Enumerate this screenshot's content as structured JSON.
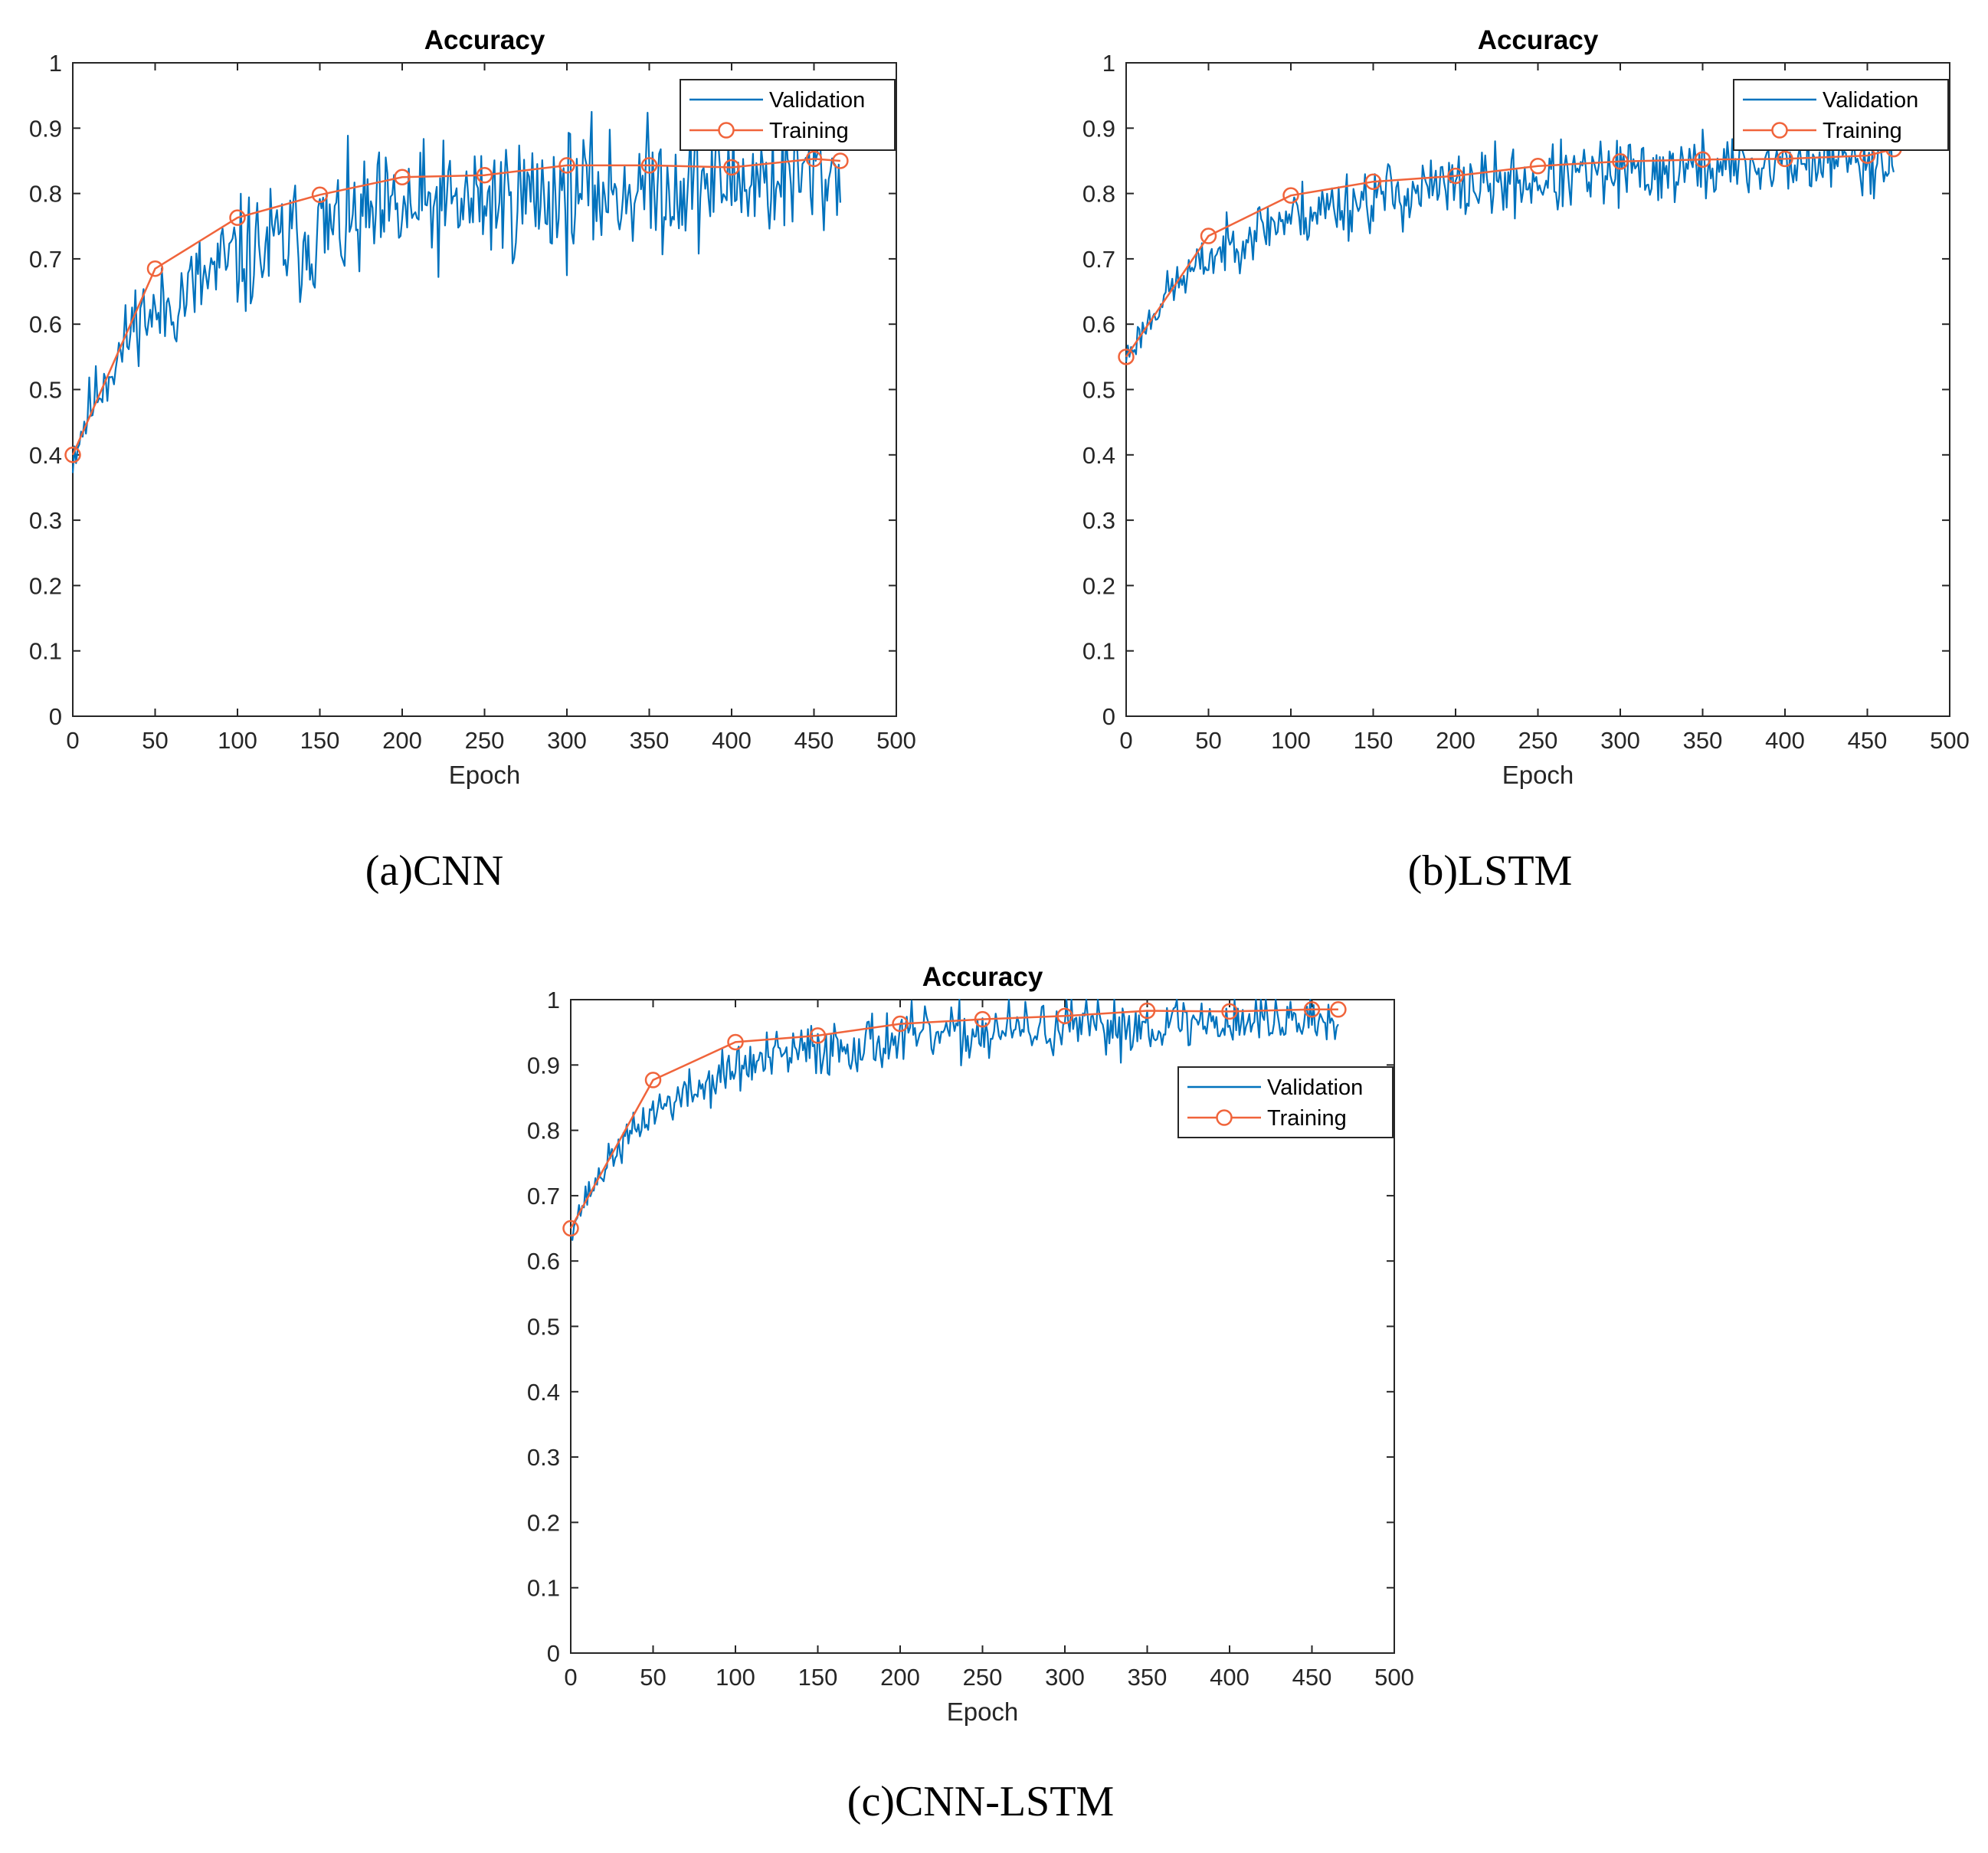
{
  "colors": {
    "validation": "#0072BD",
    "training": "#F0643B",
    "axis": "#262626"
  },
  "panels": [
    {
      "caption": "(a)CNN",
      "chart_data": {
        "type": "line",
        "title": "Accuracy",
        "xlabel": "Epoch",
        "ylabel": "",
        "xlim": [
          0,
          500
        ],
        "ylim": [
          0,
          1
        ],
        "xticks": [
          "0",
          "50",
          "100",
          "150",
          "200",
          "250",
          "300",
          "350",
          "400",
          "450",
          "500"
        ],
        "yticks": [
          "0",
          "0.1",
          "0.2",
          "0.3",
          "0.4",
          "0.5",
          "0.6",
          "0.7",
          "0.8",
          "0.9",
          "1"
        ],
        "legend": {
          "position": "top-right",
          "entries": [
            "Validation",
            "Training"
          ]
        },
        "series": [
          {
            "name": "Validation",
            "style": "line",
            "noisy": true,
            "seed": 11,
            "amp": 0.022,
            "x_end": 466,
            "x": [
              0,
              10,
              20,
              30,
              40,
              50,
              75,
              100,
              125,
              150,
              200,
              250,
              300,
              350,
              400,
              466
            ],
            "y": [
              0.4,
              0.47,
              0.52,
              0.56,
              0.62,
              0.61,
              0.66,
              0.7,
              0.72,
              0.74,
              0.77,
              0.79,
              0.8,
              0.81,
              0.82,
              0.83
            ]
          },
          {
            "name": "Training",
            "style": "line-marker",
            "x": [
              0,
              50,
              100,
              150,
              200,
              250,
              300,
              350,
              400,
              450,
              466
            ],
            "y": [
              0.4,
              0.685,
              0.763,
              0.798,
              0.825,
              0.828,
              0.843,
              0.843,
              0.84,
              0.853,
              0.85
            ]
          }
        ]
      }
    },
    {
      "caption": "(b)LSTM",
      "chart_data": {
        "type": "line",
        "title": "Accuracy",
        "xlabel": "Epoch",
        "ylabel": "",
        "xlim": [
          0,
          500
        ],
        "ylim": [
          0,
          1
        ],
        "xticks": [
          "0",
          "50",
          "100",
          "150",
          "200",
          "250",
          "300",
          "350",
          "400",
          "450",
          "500"
        ],
        "yticks": [
          "0",
          "0.1",
          "0.2",
          "0.3",
          "0.4",
          "0.5",
          "0.6",
          "0.7",
          "0.8",
          "0.9",
          "1"
        ],
        "legend": {
          "position": "top-right",
          "entries": [
            "Validation",
            "Training"
          ]
        },
        "series": [
          {
            "name": "Validation",
            "style": "line",
            "noisy": true,
            "seed": 23,
            "amp": 0.012,
            "x_end": 466,
            "x": [
              0,
              10,
              25,
              50,
              75,
              100,
              150,
              200,
              250,
              300,
              350,
              400,
              466
            ],
            "y": [
              0.55,
              0.59,
              0.65,
              0.7,
              0.74,
              0.765,
              0.795,
              0.81,
              0.82,
              0.83,
              0.84,
              0.845,
              0.855
            ]
          },
          {
            "name": "Training",
            "style": "line-marker",
            "x": [
              0,
              50,
              100,
              150,
              200,
              250,
              300,
              350,
              400,
              450,
              466
            ],
            "y": [
              0.55,
              0.735,
              0.797,
              0.818,
              0.827,
              0.842,
              0.849,
              0.852,
              0.853,
              0.858,
              0.868
            ]
          }
        ]
      }
    },
    {
      "caption": "(c)CNN-LSTM",
      "chart_data": {
        "type": "line",
        "title": "Accuracy",
        "xlabel": "Epoch",
        "ylabel": "",
        "xlim": [
          0,
          500
        ],
        "ylim": [
          0,
          1
        ],
        "xticks": [
          "0",
          "50",
          "100",
          "150",
          "200",
          "250",
          "300",
          "350",
          "400",
          "450",
          "500"
        ],
        "yticks": [
          "0",
          "0.1",
          "0.2",
          "0.3",
          "0.4",
          "0.5",
          "0.6",
          "0.7",
          "0.8",
          "0.9",
          "1"
        ],
        "legend": {
          "position": "top-right",
          "entries": [
            "Validation",
            "Training"
          ]
        },
        "series": [
          {
            "name": "Validation",
            "style": "line",
            "noisy": true,
            "seed": 37,
            "amp": 0.01,
            "x_end": 466,
            "x": [
              0,
              10,
              25,
              50,
              75,
              100,
              150,
              200,
              250,
              300,
              350,
              400,
              466
            ],
            "y": [
              0.65,
              0.7,
              0.76,
              0.83,
              0.86,
              0.895,
              0.925,
              0.94,
              0.95,
              0.955,
              0.962,
              0.968,
              0.972
            ]
          },
          {
            "name": "Training",
            "style": "line-marker",
            "x": [
              0,
              50,
              100,
              150,
              200,
              250,
              300,
              350,
              400,
              450,
              466
            ],
            "y": [
              0.65,
              0.877,
              0.935,
              0.945,
              0.963,
              0.97,
              0.975,
              0.983,
              0.982,
              0.985,
              0.985
            ]
          }
        ]
      }
    }
  ]
}
